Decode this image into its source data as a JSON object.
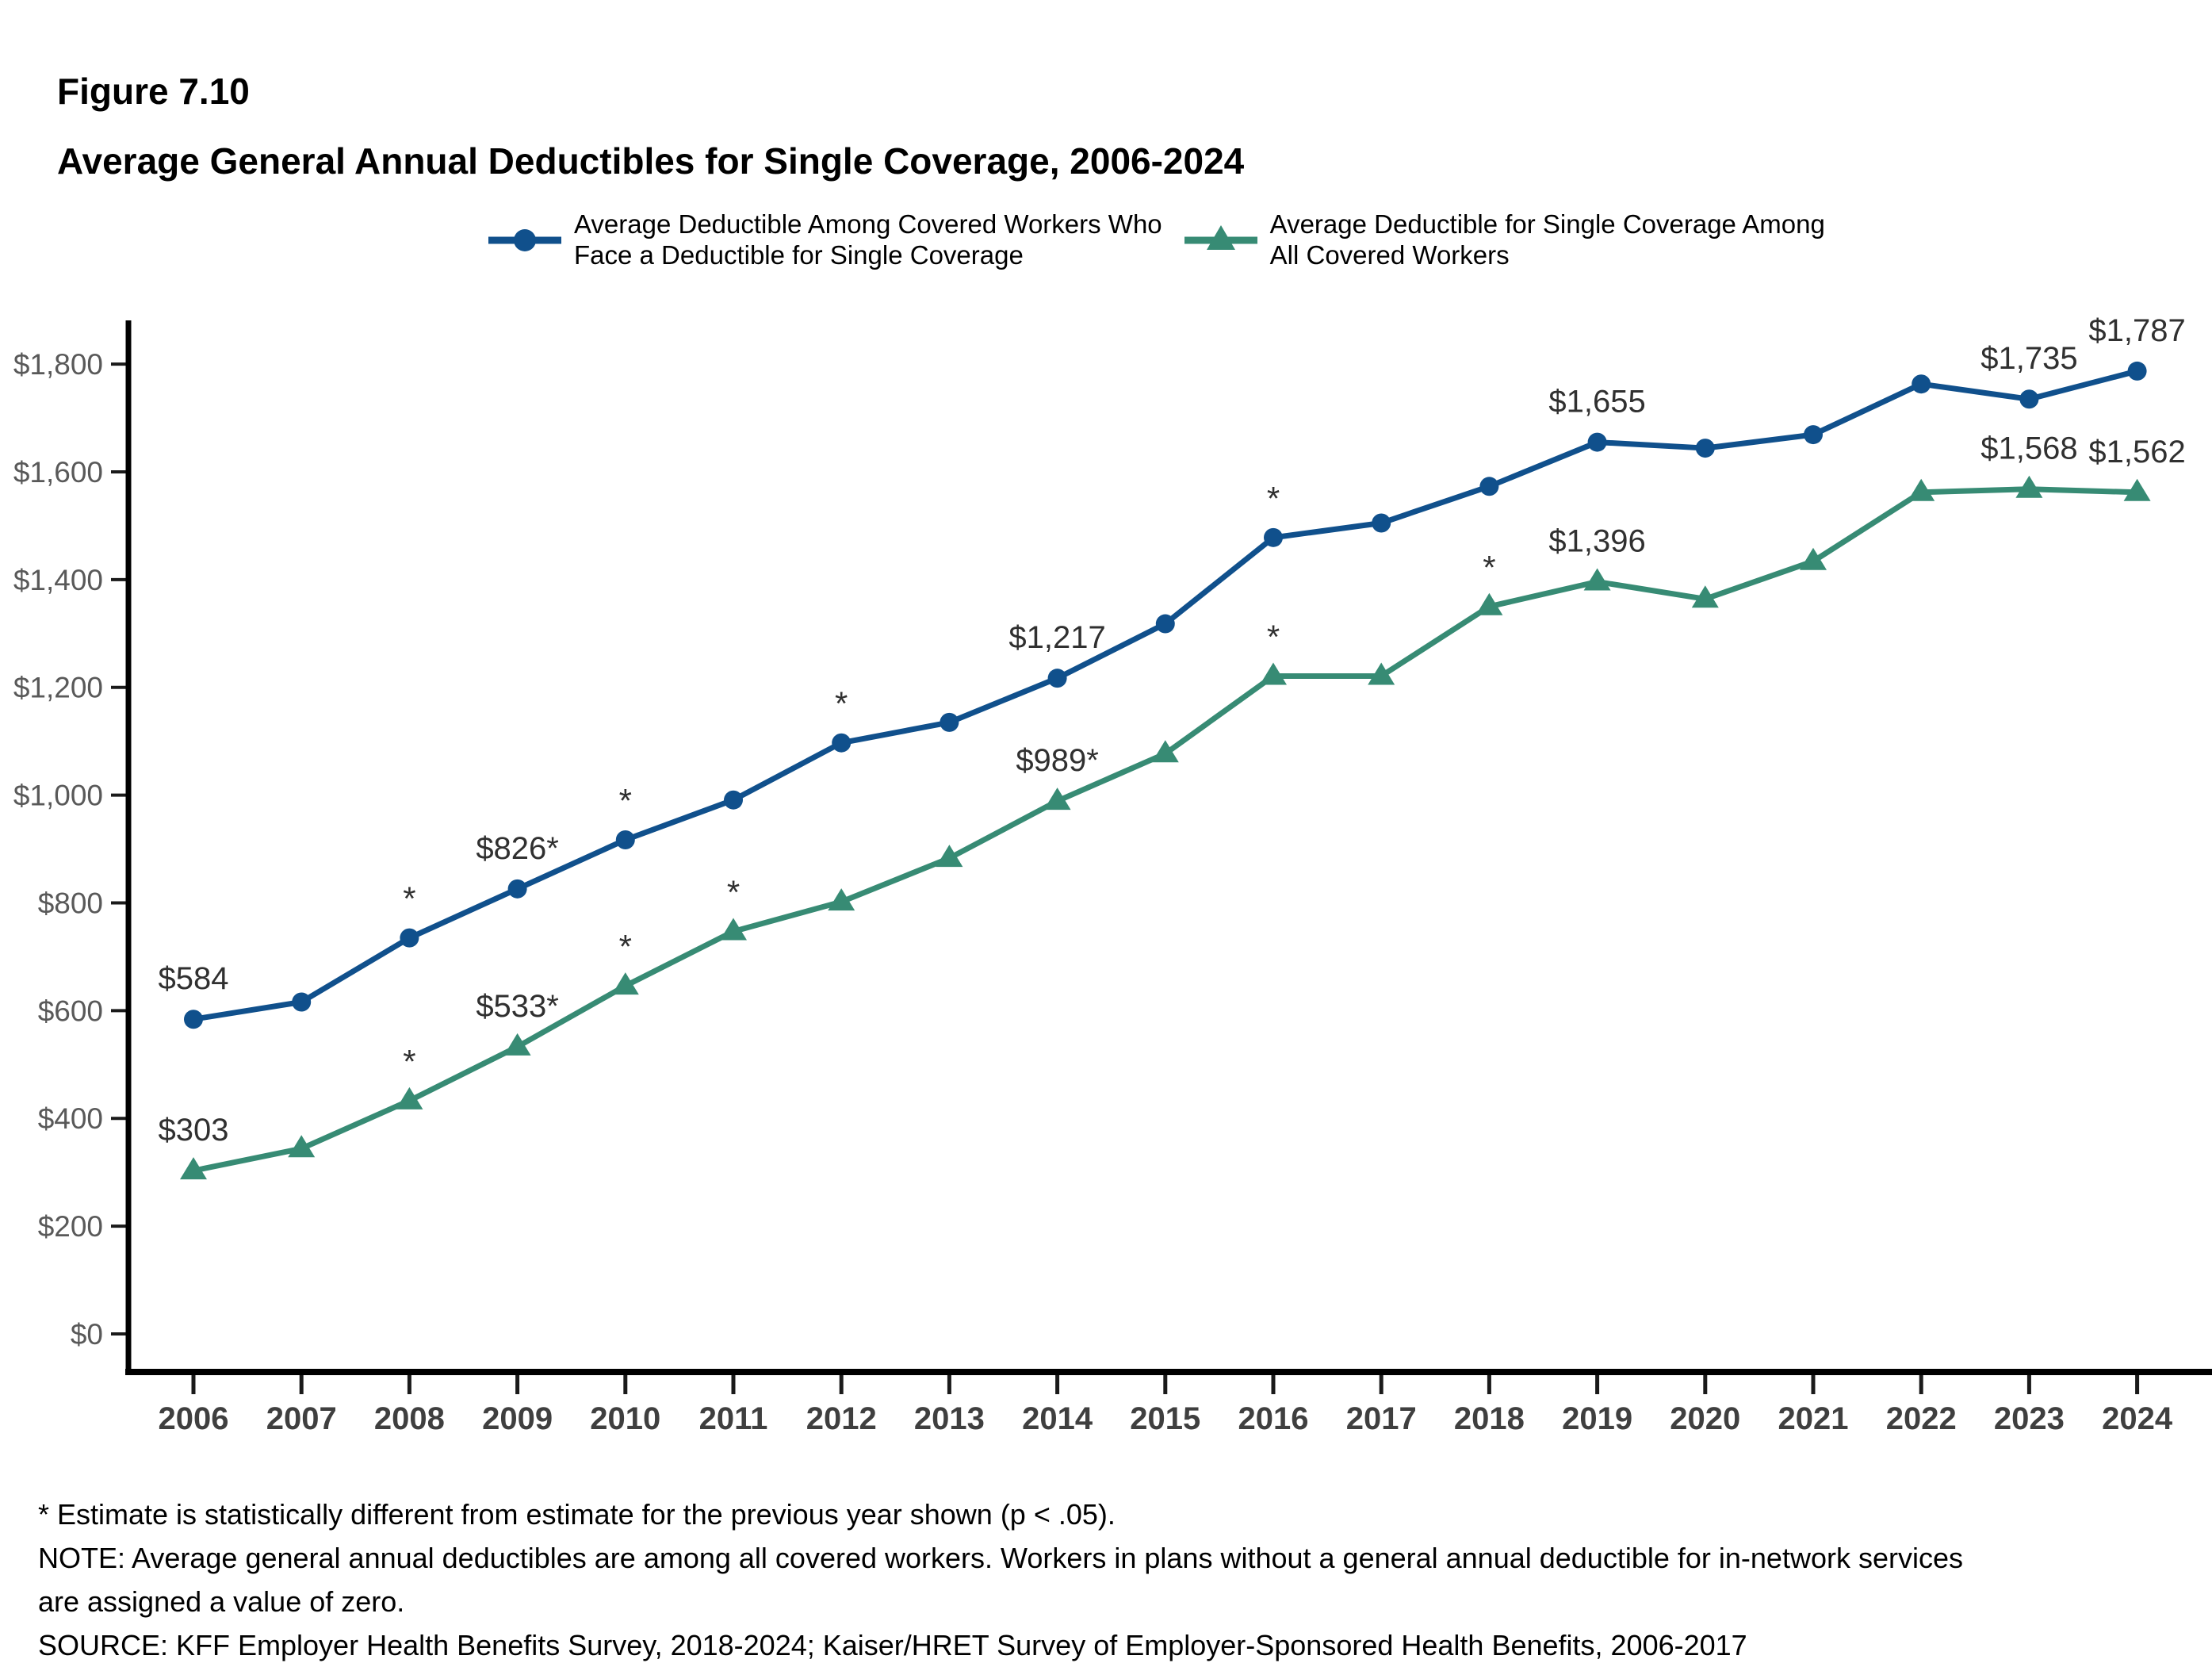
{
  "header": {
    "figure_label": "Figure 7.10",
    "title": "Average General Annual Deductibles for Single Coverage, 2006-2024"
  },
  "legend": {
    "items": [
      {
        "label": "Average Deductible Among Covered Workers Who\nFace a Deductible for Single Coverage",
        "marker": "circle",
        "color": "#10508C"
      },
      {
        "label": "Average Deductible for Single Coverage Among\nAll Covered Workers",
        "marker": "triangle",
        "color": "#378B74"
      }
    ]
  },
  "chart_data": {
    "type": "line",
    "title": "Average General Annual Deductibles for Single Coverage, 2006-2024",
    "xlabel": "",
    "ylabel": "",
    "x": [
      2006,
      2007,
      2008,
      2009,
      2010,
      2011,
      2012,
      2013,
      2014,
      2015,
      2016,
      2017,
      2018,
      2019,
      2020,
      2021,
      2022,
      2023,
      2024
    ],
    "ylim": [
      0,
      1800
    ],
    "ytick_step": 200,
    "ytick_labels": [
      "$0",
      "$200",
      "$400",
      "$600",
      "$800",
      "$1,000",
      "$1,200",
      "$1,400",
      "$1,600",
      "$1,800"
    ],
    "grid": false,
    "legend_position": "top",
    "statistical_marker": "*",
    "series": [
      {
        "name": "Average Deductible Among Covered Workers Who Face a Deductible for Single Coverage",
        "marker": "circle",
        "color": "#10508C",
        "values": [
          584,
          616,
          735,
          826,
          917,
          991,
          1097,
          1135,
          1217,
          1318,
          1478,
          1505,
          1573,
          1655,
          1644,
          1669,
          1763,
          1735,
          1787
        ],
        "point_labels": {
          "2006": "$584",
          "2009": "$826*",
          "2014": "$1,217",
          "2019": "$1,655",
          "2023": "$1,735",
          "2024": "$1,787"
        },
        "asterisk_years": [
          2008,
          2010,
          2012,
          2016
        ]
      },
      {
        "name": "Average Deductible for Single Coverage Among All Covered Workers",
        "marker": "triangle",
        "color": "#378B74",
        "values": [
          303,
          344,
          433,
          533,
          646,
          747,
          802,
          883,
          989,
          1077,
          1221,
          1221,
          1350,
          1396,
          1364,
          1434,
          1562,
          1568,
          1562
        ],
        "point_labels": {
          "2006": "$303",
          "2009": "$533*",
          "2014": "$989*",
          "2019": "$1,396",
          "2023": "$1,568",
          "2024": "$1,562"
        },
        "asterisk_years": [
          2008,
          2010,
          2011,
          2016,
          2018
        ]
      }
    ]
  },
  "footnotes": {
    "asterisk_note": "* Estimate is statistically different from estimate for the previous year shown (p < .05).",
    "note_line1": "NOTE: Average general annual deductibles are among all covered workers. Workers in plans without a general annual deductible for in-network services",
    "note_line2": "are assigned a value of zero.",
    "source": "SOURCE: KFF Employer Health Benefits Survey, 2018-2024; Kaiser/HRET Survey of Employer-Sponsored Health Benefits, 2006-2017"
  }
}
